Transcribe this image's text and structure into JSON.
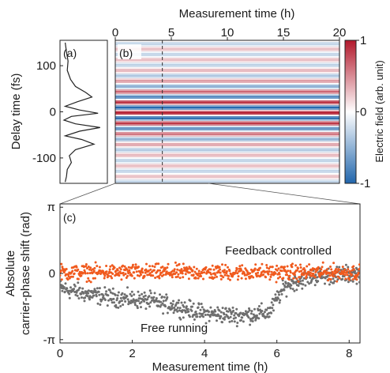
{
  "chart_data": [
    {
      "panel": "(a)",
      "type": "line",
      "ylabel": "Delay time (fs)",
      "yticks": [
        100,
        0,
        -100
      ],
      "ylim": [
        -155,
        155
      ],
      "description_free": true,
      "series": [
        {
          "x": [
            0.05,
            0.08,
            0.12,
            0.1,
            0.18,
            0.3,
            0.55,
            0.7,
            0.35,
            0.05,
            0.4,
            0.85,
            0.2,
            0.02,
            0.3,
            0.9,
            0.4,
            0.05,
            0.45,
            0.75,
            0.3,
            0.15,
            0.2,
            0.1,
            0.08,
            0.05
          ],
          "y": [
            150,
            130,
            110,
            90,
            70,
            55,
            42,
            32,
            22,
            12,
            4,
            -3,
            -10,
            -18,
            -26,
            -34,
            -42,
            -52,
            -60,
            -70,
            -82,
            -95,
            -110,
            -125,
            -140,
            -152
          ]
        }
      ]
    },
    {
      "panel": "(b)",
      "type": "heatmap",
      "xlabel": "Measurement time (h)",
      "xticks": [
        0,
        5,
        10,
        15,
        20
      ],
      "xlim": [
        0,
        20
      ],
      "ylim": [
        -155,
        155
      ],
      "colorbar": {
        "label": "Electric field (arb. unit)",
        "ticks": [
          1,
          0,
          -1
        ],
        "range": [
          -1,
          1
        ]
      },
      "colors": {
        "high": "#b2182b",
        "mid": "#ffffff",
        "low": "#2166ac"
      },
      "marker_line_h": 4.2
    },
    {
      "panel": "(c)",
      "type": "scatter",
      "xlabel": "Measurement time (h)",
      "ylabel": "Absolute\ncarrier-phase shift (rad)",
      "xticks": [
        0,
        2,
        4,
        6,
        8
      ],
      "xlim": [
        0,
        8.3
      ],
      "yticks": [
        "π",
        "0",
        "-π"
      ],
      "ylim": [
        -3.3,
        3.3
      ],
      "series": [
        {
          "name": "Feedback controlled",
          "color": "#f05a1e",
          "mean": [
            [
              0,
              0.05
            ],
            [
              8.3,
              0.05
            ]
          ],
          "spread": 0.55,
          "count": 650
        },
        {
          "name": "Free running",
          "color": "#6e6e6e",
          "mean": [
            [
              0,
              -0.7
            ],
            [
              0.8,
              -1.0
            ],
            [
              1.5,
              -1.15
            ],
            [
              2.5,
              -1.3
            ],
            [
              3.2,
              -1.55
            ],
            [
              4.0,
              -1.9
            ],
            [
              5.0,
              -2.0
            ],
            [
              5.8,
              -1.85
            ],
            [
              6.0,
              -1.2
            ],
            [
              6.3,
              -0.5
            ],
            [
              7.0,
              -0.15
            ],
            [
              8.3,
              0.0
            ]
          ],
          "spread": 0.6,
          "count": 650
        }
      ]
    }
  ],
  "labels": {
    "top_xlabel": "Measurement time (h)",
    "top_xticks": [
      "0",
      "5",
      "10",
      "15",
      "20"
    ],
    "ylabel_ab": "Delay time (fs)",
    "yticks_ab": [
      "100",
      "0",
      "-100"
    ],
    "panel_a": "(a)",
    "panel_b": "(b)",
    "panel_c": "(c)",
    "cbar_label": "Electric field (arb. unit)",
    "cbar_ticks": [
      "1",
      "0",
      "-1"
    ],
    "ylabel_c_line1": "Absolute",
    "ylabel_c_line2": "carrier-phase shift (rad)",
    "yticks_c": [
      "π",
      "0",
      "-π"
    ],
    "bottom_xlabel": "Measurement time (h)",
    "bottom_xticks": [
      "0",
      "2",
      "4",
      "6",
      "8"
    ],
    "legend_feedback": "Feedback controlled",
    "legend_free": "Free running"
  }
}
